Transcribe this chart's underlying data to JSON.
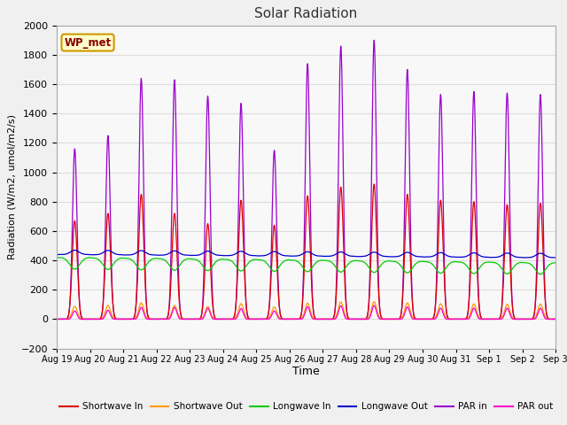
{
  "title": "Solar Radiation",
  "ylabel": "Radiation (W/m2, umol/m2/s)",
  "xlabel": "Time",
  "ylim": [
    -200,
    2000
  ],
  "yticks": [
    -200,
    0,
    200,
    400,
    600,
    800,
    1000,
    1200,
    1400,
    1600,
    1800,
    2000
  ],
  "date_labels": [
    "Aug 19",
    "Aug 20",
    "Aug 21",
    "Aug 22",
    "Aug 23",
    "Aug 24",
    "Aug 25",
    "Aug 26",
    "Aug 27",
    "Aug 28",
    "Aug 29",
    "Aug 30",
    "Aug 31",
    "Sep 1",
    "Sep 2",
    "Sep 3"
  ],
  "station_label": "WP_met",
  "legend_entries": [
    "Shortwave In",
    "Shortwave Out",
    "Longwave In",
    "Longwave Out",
    "PAR in",
    "PAR out"
  ],
  "colors": {
    "shortwave_in": "#dd0000",
    "shortwave_out": "#ff9900",
    "longwave_in": "#00cc00",
    "longwave_out": "#0000cc",
    "par_in": "#9900cc",
    "par_out": "#ff00cc"
  },
  "fig_bg": "#f0f0f0",
  "plot_bg": "#f8f8f8",
  "grid_color": "#dddddd",
  "n_days": 15,
  "dt_hours": 0.25,
  "sw_in_peaks": [
    670,
    720,
    850,
    720,
    650,
    810,
    640,
    840,
    900,
    920,
    850,
    810,
    800,
    780,
    790
  ],
  "par_in_peaks": [
    1160,
    1250,
    1640,
    1630,
    1520,
    1470,
    1150,
    1740,
    1860,
    1900,
    1700,
    1530,
    1550,
    1540,
    1530
  ],
  "lw_base": 420,
  "lw_out_base": 440
}
